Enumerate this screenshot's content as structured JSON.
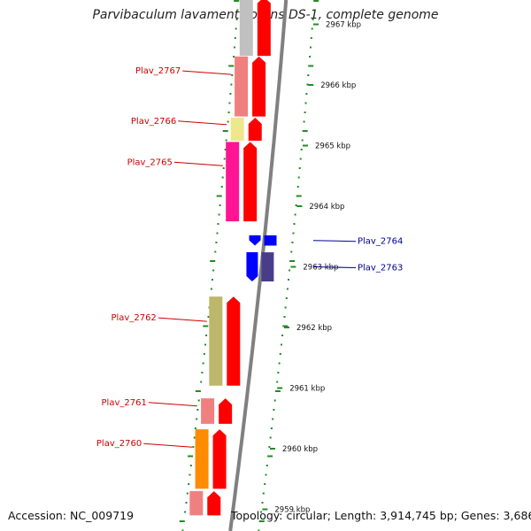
{
  "title": "Parvibaculum lavamentivorans DS-1, complete genome",
  "footer": {
    "accession": "Accession: NC_009719",
    "summary": "Topology: circular; Length: 3,914,745 bp; Genes: 3,686"
  },
  "ticks": [
    {
      "label": "2967 kbp",
      "kbp": 2967
    },
    {
      "label": "2966 kbp",
      "kbp": 2966
    },
    {
      "label": "2965 kbp",
      "kbp": 2965
    },
    {
      "label": "2964 kbp",
      "kbp": 2964
    },
    {
      "label": "2963 kbp",
      "kbp": 2963
    },
    {
      "label": "2962 kbp",
      "kbp": 2962
    },
    {
      "label": "2961 kbp",
      "kbp": 2961
    },
    {
      "label": "2960 kbp",
      "kbp": 2960
    },
    {
      "label": "2959 kbp",
      "kbp": 2959
    }
  ],
  "genes": [
    {
      "label": "",
      "strand": "+",
      "start_kbp": 2966.48,
      "end_kbp": 2967.45,
      "cog_color": "#c0c0c0"
    },
    {
      "label": "Plav_2767",
      "strand": "+",
      "start_kbp": 2965.48,
      "end_kbp": 2966.47,
      "cog_color": "#f08080"
    },
    {
      "label": "Plav_2766",
      "strand": "+",
      "start_kbp": 2965.08,
      "end_kbp": 2965.46,
      "cog_color": "#f0e68c"
    },
    {
      "label": "Plav_2765",
      "strand": "+",
      "start_kbp": 2963.75,
      "end_kbp": 2965.06,
      "cog_color": "#ff1493"
    },
    {
      "label": "Plav_2764",
      "strand": "-",
      "start_kbp": 2963.35,
      "end_kbp": 2963.52,
      "cog_color": "#0000ff"
    },
    {
      "label": "Plav_2763",
      "strand": "-",
      "start_kbp": 2962.76,
      "end_kbp": 2963.24,
      "cog_color": "#483d8b"
    },
    {
      "label": "Plav_2762",
      "strand": "+",
      "start_kbp": 2961.04,
      "end_kbp": 2962.51,
      "cog_color": "#bdb76b"
    },
    {
      "label": "Plav_2761",
      "strand": "+",
      "start_kbp": 2960.41,
      "end_kbp": 2960.83,
      "cog_color": "#f08080"
    },
    {
      "label": "Plav_2760",
      "strand": "+",
      "start_kbp": 2959.34,
      "end_kbp": 2960.32,
      "cog_color": "#ff8c00"
    },
    {
      "label": "",
      "strand": "+",
      "start_kbp": 2958.9,
      "end_kbp": 2959.3,
      "cog_color": "#f08080"
    }
  ],
  "colors": {
    "forward_cds": "#ff0000",
    "reverse_cds": "#0000ff",
    "forward_label": "#cc0000",
    "reverse_label": "#000099",
    "backbone": "#808080",
    "gc_dots": "#228b22"
  }
}
